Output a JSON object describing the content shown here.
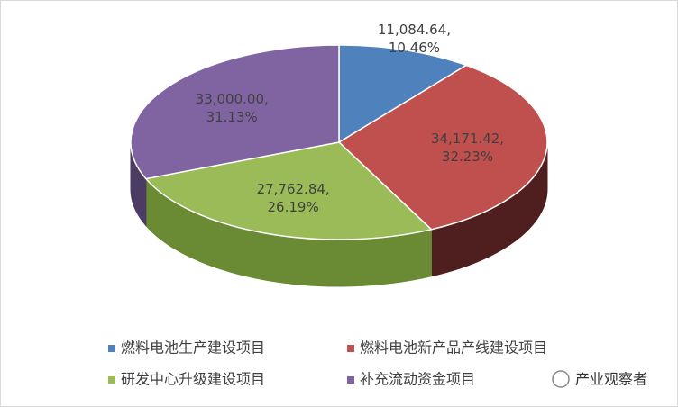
{
  "chart_data": {
    "type": "pie3d",
    "categories": [
      "燃料电池生产建设项目",
      "燃料电池新产品产线建设项目",
      "研发中心升级建设项目",
      "补充流动资金项目"
    ],
    "values": [
      11084.64,
      34171.42,
      27762.84,
      33000.0
    ],
    "value_labels": [
      "11,084.64,",
      "34,171.42,",
      "27,762.84,",
      "33,000.00,"
    ],
    "percents": [
      10.46,
      32.23,
      26.19,
      31.13
    ],
    "percent_labels": [
      "10.46%",
      "32.23%",
      "26.19%",
      "31.13%"
    ],
    "colors": [
      "#4f81bd",
      "#c0504d",
      "#9bbb59",
      "#8064a2"
    ],
    "side_colors": [
      "#2f4d72",
      "#4e1f1e",
      "#6a8a33",
      "#4c3b63"
    ],
    "watermark": "产业观察者"
  }
}
